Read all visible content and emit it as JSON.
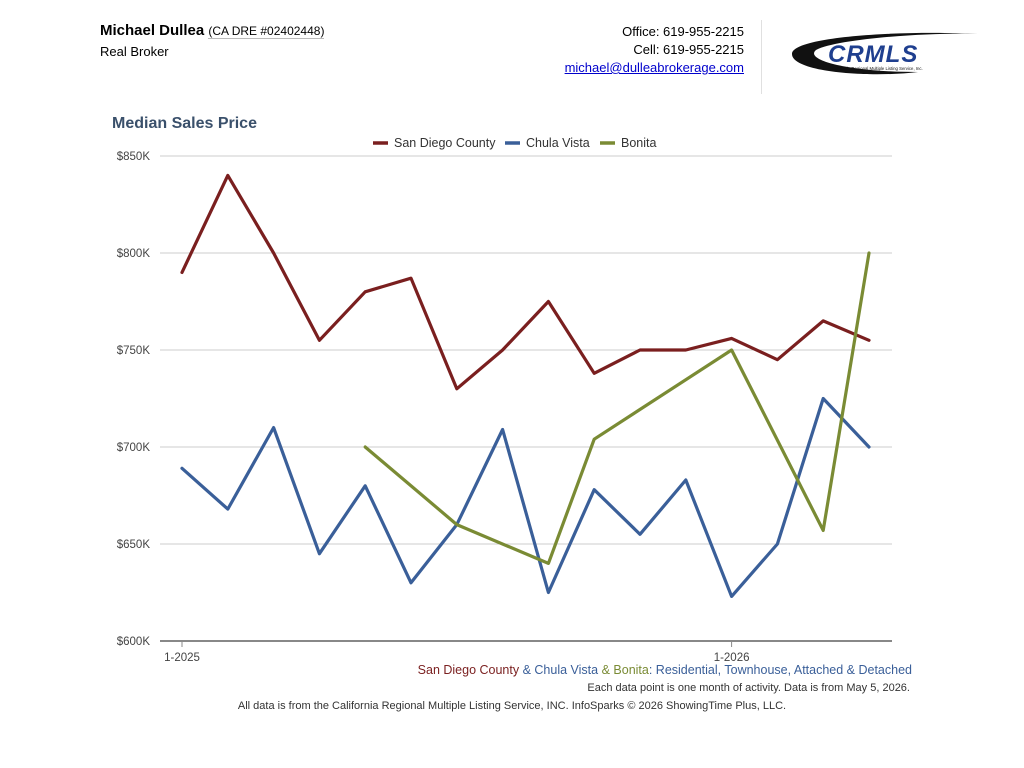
{
  "header": {
    "agent_name": "Michael Dullea",
    "agent_license": "(CA DRE #02402448)",
    "brokerage": "Real Broker",
    "office": "Office: 619-955-2215",
    "cell": "Cell: 619-955-2215",
    "email": "michael@dulleabrokerage.com"
  },
  "logo": {
    "text": "CRMLS",
    "tagline": "California Regional Multiple Listing Service, Inc."
  },
  "chart_data": {
    "type": "line",
    "title": "Median Sales Price",
    "x": [
      "1-2025",
      "2-2025",
      "3-2025",
      "4-2025",
      "5-2025",
      "6-2025",
      "7-2025",
      "8-2025",
      "9-2025",
      "10-2025",
      "11-2025",
      "12-2025",
      "1-2026",
      "2-2026",
      "3-2026",
      "4-2026"
    ],
    "x_tick_labels": [
      "1-2025",
      "1-2026"
    ],
    "ylim": [
      600000,
      850000
    ],
    "y_ticks": [
      {
        "value": 600000,
        "label": "$600K"
      },
      {
        "value": 650000,
        "label": "$650K"
      },
      {
        "value": 700000,
        "label": "$700K"
      },
      {
        "value": 750000,
        "label": "$750K"
      },
      {
        "value": 800000,
        "label": "$800K"
      },
      {
        "value": 850000,
        "label": "$850K"
      }
    ],
    "grid": true,
    "legend_position": "top",
    "series": [
      {
        "name": "San Diego County",
        "color": "#7a1f1f",
        "values": [
          790000,
          840000,
          800000,
          755000,
          780000,
          787000,
          730000,
          750000,
          775000,
          738000,
          750000,
          750000,
          756000,
          745000,
          765000,
          755000
        ]
      },
      {
        "name": "Chula Vista",
        "color": "#3a5f99",
        "values": [
          689000,
          668000,
          710000,
          645000,
          680000,
          630000,
          660000,
          709000,
          625000,
          678000,
          655000,
          683000,
          623000,
          650000,
          725000,
          700000
        ]
      },
      {
        "name": "Bonita",
        "color": "#7a8b34",
        "values": [
          null,
          null,
          null,
          null,
          700000,
          null,
          660000,
          null,
          640000,
          704000,
          null,
          null,
          750000,
          null,
          657000,
          800000
        ]
      }
    ]
  },
  "caption": {
    "sd": "San Diego County",
    "amp1": " & ",
    "cv": "Chula Vista",
    "amp2": " & ",
    "bo": "Bonita",
    "type": ": Residential, Townhouse, Attached & Detached"
  },
  "note": "Each data point is one month of activity. Data is from May 5, 2026.",
  "source": "All data is from the California Regional Multiple Listing Service, INC. InfoSparks © 2026 ShowingTime Plus, LLC."
}
